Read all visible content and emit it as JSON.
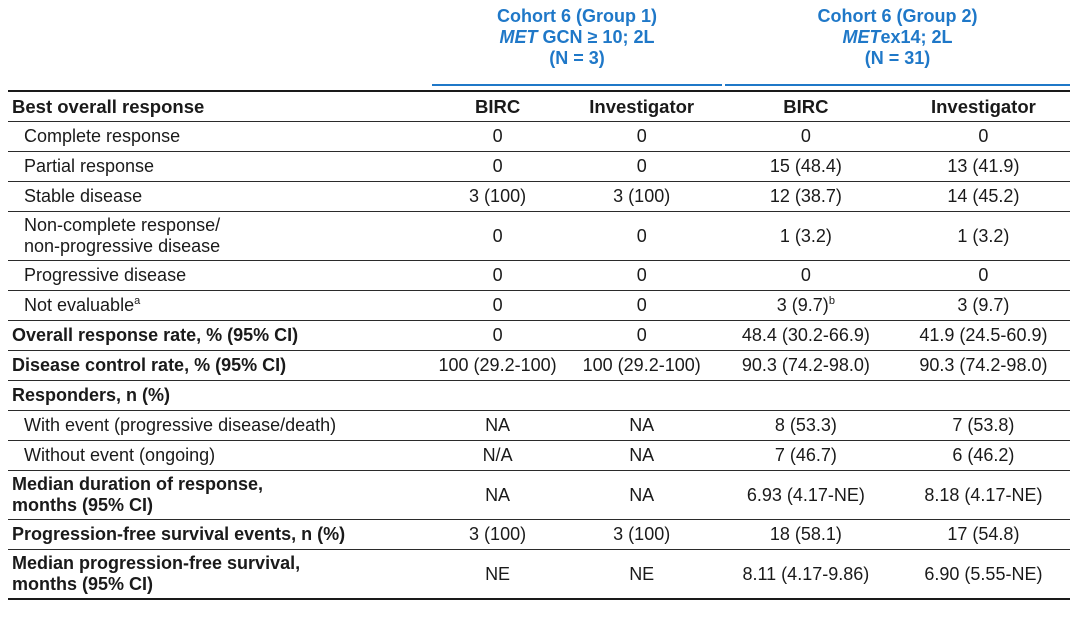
{
  "header": {
    "cohort1": {
      "title": "Cohort 6 (Group 1)",
      "sub_italic": "MET",
      "sub_rest": " GCN ≥ 10; 2L",
      "n": "(N = 3)"
    },
    "cohort2": {
      "title": "Cohort 6 (Group 2)",
      "sub_italic": "MET",
      "sub_rest": "ex14; 2L",
      "n": "(N = 31)"
    },
    "row_title": "Best overall response",
    "cols": [
      "BIRC",
      "Investigator",
      "BIRC",
      "Investigator"
    ]
  },
  "rows": [
    {
      "label": "Complete response",
      "values": [
        "0",
        "0",
        "0",
        "0"
      ]
    },
    {
      "label": "Partial response",
      "values": [
        "0",
        "0",
        "15 (48.4)",
        "13 (41.9)"
      ]
    },
    {
      "label": "Stable disease",
      "values": [
        "3 (100)",
        "3 (100)",
        "12 (38.7)",
        "14 (45.2)"
      ]
    },
    {
      "label": "Non-complete response/",
      "label2": "non-progressive disease",
      "values": [
        "0",
        "0",
        "1 (3.2)",
        "1 (3.2)"
      ]
    },
    {
      "label": "Progressive disease",
      "values": [
        "0",
        "0",
        "0",
        "0"
      ]
    },
    {
      "label": "Not evaluable",
      "sup": "a",
      "values": [
        "0",
        "0",
        "3 (9.7)",
        "3 (9.7)"
      ],
      "sup3": "b"
    },
    {
      "label": "Overall response rate, % (95% CI)",
      "values": [
        "0",
        "0",
        "48.4 (30.2-66.9)",
        "41.9 (24.5-60.9)"
      ]
    },
    {
      "label": "Disease control rate, % (95% CI)",
      "values": [
        "100 (29.2-100)",
        "100 (29.2-100)",
        "90.3 (74.2-98.0)",
        "90.3 (74.2-98.0)"
      ]
    },
    {
      "label": "Responders, n (%)",
      "values": [
        "",
        "",
        "",
        ""
      ]
    },
    {
      "label": "With event (progressive disease/death)",
      "values": [
        "NA",
        "NA",
        "8 (53.3)",
        "7 (53.8)"
      ]
    },
    {
      "label": "Without event (ongoing)",
      "values": [
        "N/A",
        "NA",
        "7 (46.7)",
        "6 (46.2)"
      ]
    },
    {
      "label": "Median duration of response,",
      "label2": "months (95% CI)",
      "values": [
        "NA",
        "NA",
        "6.93 (4.17-NE)",
        "8.18 (4.17-NE)"
      ]
    },
    {
      "label": "Progression-free survival events, n (%)",
      "values": [
        "3 (100)",
        "3 (100)",
        "18 (58.1)",
        "17 (54.8)"
      ]
    },
    {
      "label": "Median progression-free survival,",
      "label2": "months (95% CI)",
      "values": [
        "NE",
        "NE",
        "8.11 (4.17-9.86)",
        "6.90 (5.55-NE)"
      ]
    }
  ]
}
